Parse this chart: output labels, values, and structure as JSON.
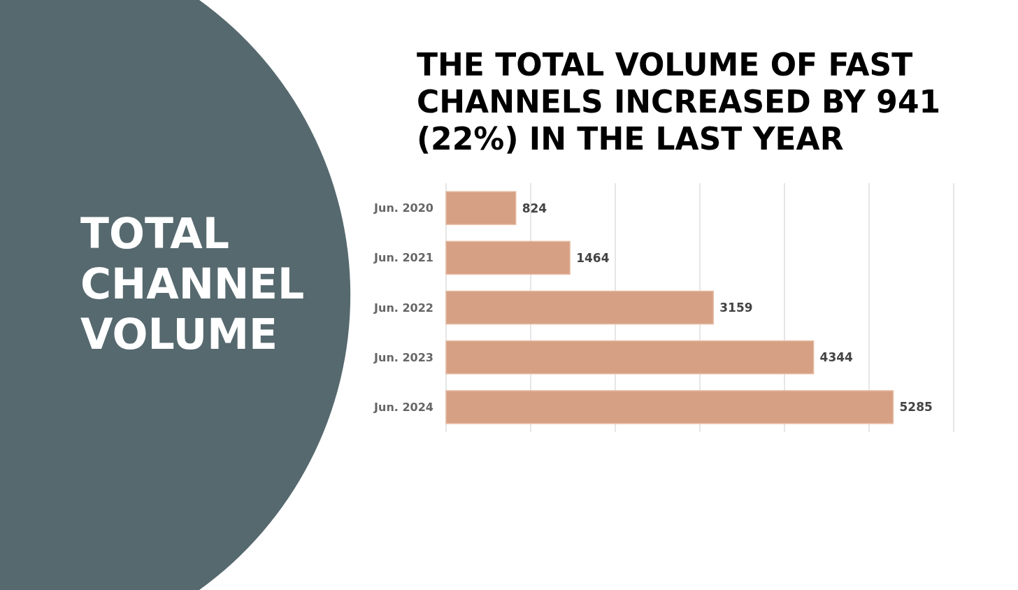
{
  "chart_data": {
    "type": "bar",
    "orientation": "horizontal",
    "title": "THE TOTAL VOLUME OF FAST CHANNELS INCREASED BY 941 (22%) IN THE LAST YEAR",
    "subtitle": "TOTAL CHANNEL VOLUME",
    "categories": [
      "Jun. 2020",
      "Jun. 2021",
      "Jun. 2022",
      "Jun. 2023",
      "Jun. 2024"
    ],
    "values": [
      824,
      1464,
      3159,
      4344,
      5285
    ],
    "color": "#d5a083",
    "data_labels": true,
    "xlim": [
      0,
      6000
    ],
    "xticks": [
      {
        "value": 0,
        "label": null
      },
      {
        "value": 1000,
        "label": null
      },
      {
        "value": 2000,
        "label": null
      },
      {
        "value": 3000,
        "label": null
      },
      {
        "value": 4000,
        "label": null
      },
      {
        "value": 5000,
        "label": null
      },
      {
        "value": 6000,
        "label": null
      }
    ],
    "grid": "x",
    "tick_labels": "y"
  }
}
